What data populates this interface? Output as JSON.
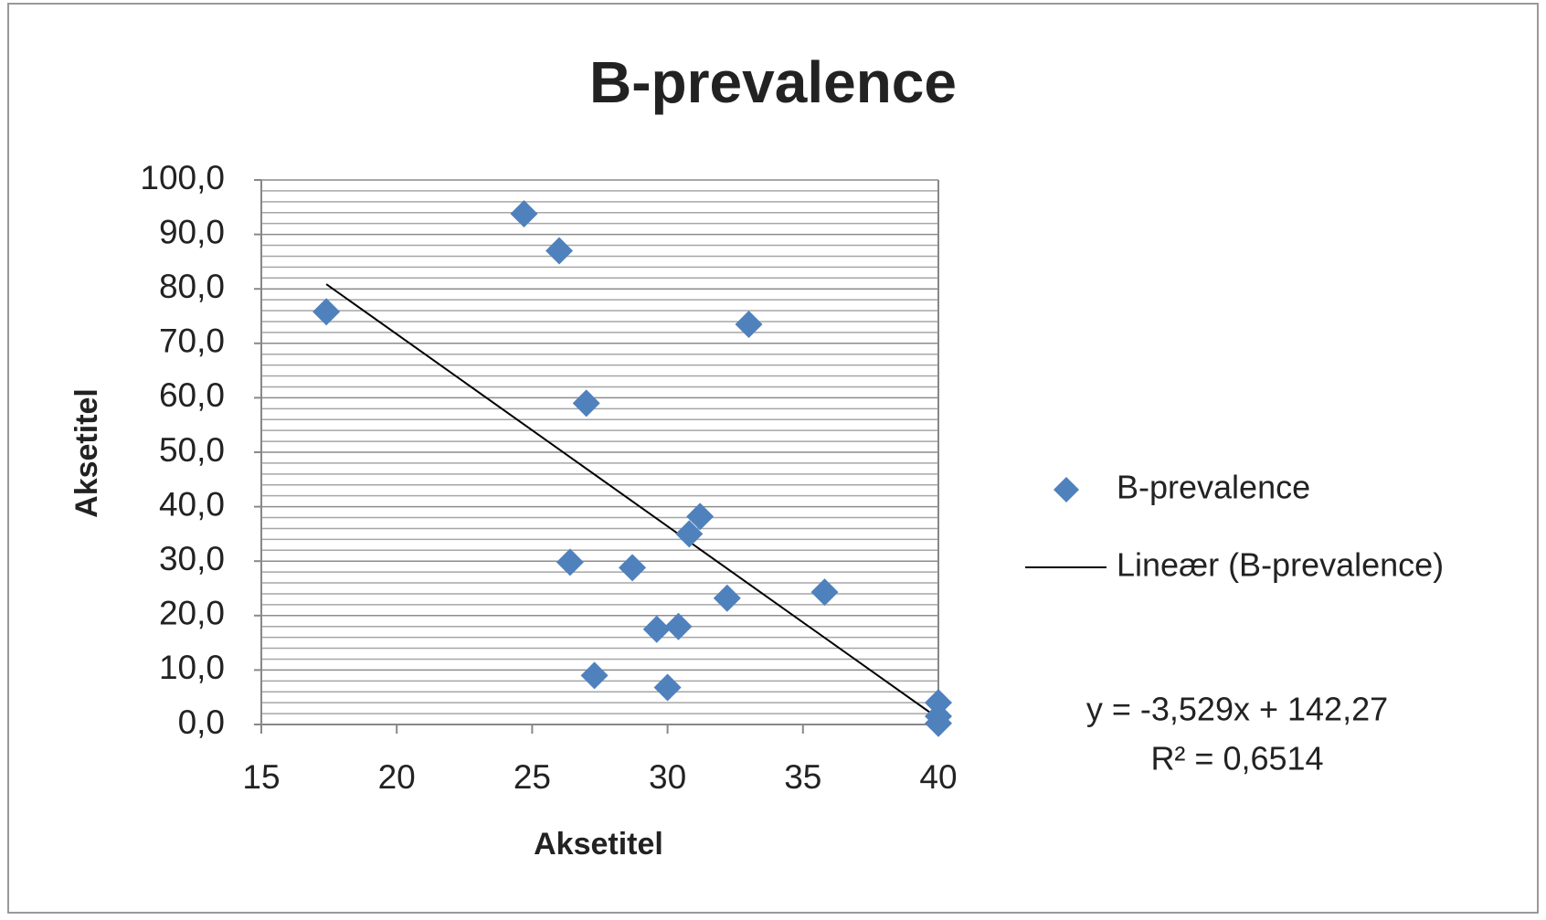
{
  "chart_data": {
    "type": "scatter",
    "title": "B-prevalence",
    "x_label": "Aksetitel",
    "y_label": "Aksetitel",
    "series": [
      {
        "name": "B-prevalence",
        "color": "#4f81bd",
        "x": [
          17.4,
          24.7,
          26.0,
          27.0,
          33.0,
          26.4,
          28.7,
          27.3,
          29.6,
          30.4,
          30.0,
          30.8,
          31.2,
          32.2,
          35.8,
          40.0,
          40.0,
          40.0
        ],
        "values": [
          75.8,
          93.8,
          87.0,
          59.0,
          73.5,
          29.8,
          28.8,
          9.0,
          17.5,
          18.0,
          6.8,
          35.0,
          38.2,
          23.2,
          24.3,
          4.0,
          1.5,
          0.2
        ]
      }
    ],
    "trendline": {
      "name": "Lineær (B-prevalence)",
      "color": "#000000",
      "slope": -3.529,
      "intercept": 142.27,
      "equation": "y = -3,529x + 142,27",
      "r_squared": "R² = 0,6514"
    },
    "xlim": [
      15,
      40
    ],
    "xticks": [
      15,
      20,
      25,
      30,
      35,
      40
    ],
    "ylim": [
      0,
      100
    ],
    "yticks": [
      {
        "value": 0,
        "label": "0,0"
      },
      {
        "value": 10,
        "label": "10,0"
      },
      {
        "value": 20,
        "label": "20,0"
      },
      {
        "value": 30,
        "label": "30,0"
      },
      {
        "value": 40,
        "label": "40,0"
      },
      {
        "value": 50,
        "label": "50,0"
      },
      {
        "value": 60,
        "label": "60,0"
      },
      {
        "value": 70,
        "label": "70,0"
      },
      {
        "value": 80,
        "label": "80,0"
      },
      {
        "value": 90,
        "label": "90,0"
      },
      {
        "value": 100,
        "label": "100,0"
      }
    ],
    "grid": true,
    "legend": "right"
  }
}
